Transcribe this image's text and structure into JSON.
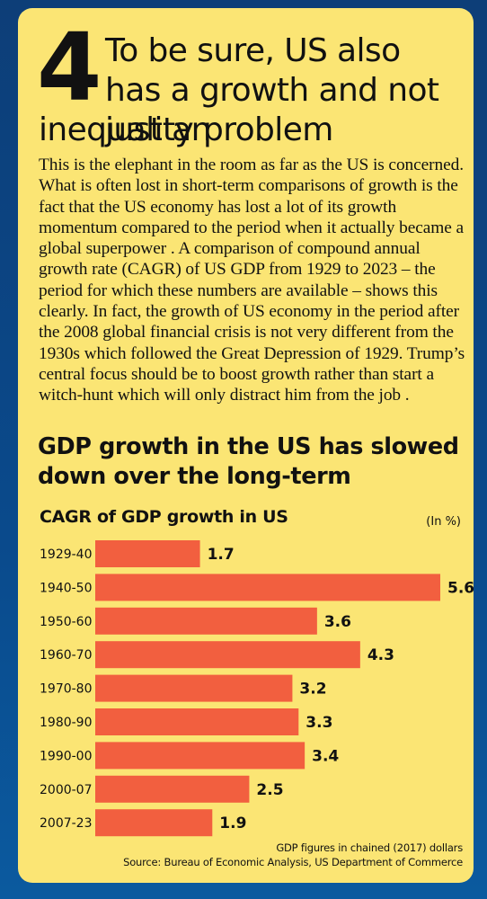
{
  "header": {
    "number": "4",
    "headline_line1": "To be sure, US also has a growth and not just an",
    "headline_line2": "inequality problem"
  },
  "body_text": "This is the elephant in the room as far as the US is concerned. What is often lost in short-term comparisons of growth is the fact that the US economy has lost a lot of its growth momentum compared to the period when it actually became a global superpower . A comparison of compound annual growth rate (CAGR) of US GDP from 1929 to 2023 – the period for which these numbers are available – shows this clearly. In fact, the growth of US economy in the period after the 2008 global financial crisis is not very different from the 1930s which followed the Great Depression of 1929. Trump’s central focus should be to boost growth rather than start a witch-hunt which will only distract him from the job .",
  "chart_data": {
    "type": "bar",
    "orientation": "horizontal",
    "title": "GDP growth in the US has slowed down over the long-term",
    "subtitle": "CAGR of GDP growth in US",
    "unit": "(In %)",
    "categories": [
      "1929-40",
      "1940-50",
      "1950-60",
      "1960-70",
      "1970-80",
      "1980-90",
      "1990-00",
      "2000-07",
      "2007-23"
    ],
    "values": [
      1.7,
      5.6,
      3.6,
      4.3,
      3.2,
      3.3,
      3.4,
      2.5,
      1.9
    ],
    "xlim": [
      0,
      5.6
    ],
    "grid": false,
    "legend": "none",
    "bar_color": "#f25f3f"
  },
  "footnotes": [
    "GDP figures in chained (2017) dollars",
    "Source: Bureau of Economic Analysis, US Department of Commerce"
  ]
}
